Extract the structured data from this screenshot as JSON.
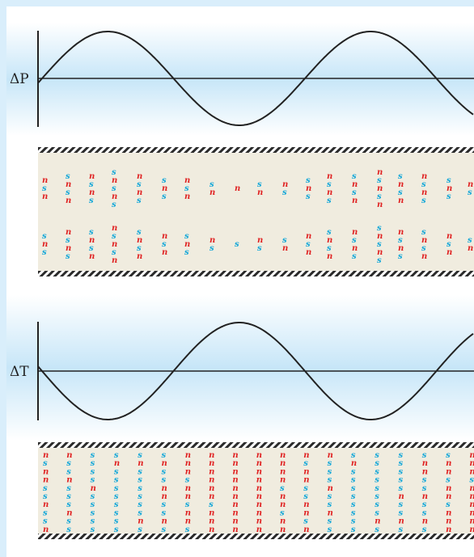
{
  "colors": {
    "background_outer": "#d9eefb",
    "panel_top": "#ffffff",
    "panel_band": "#c7e6f8",
    "tube_fill": "#f0ecdf",
    "wall_stripe": "#2b2b2b",
    "n_color": "#e02424",
    "s_color": "#1aa9d8",
    "curve": "#222222"
  },
  "plots": [
    {
      "id": "pressure",
      "label": "ΔP",
      "phase": "sine"
    },
    {
      "id": "temperature",
      "label": "ΔT",
      "phase": "negative-sine"
    }
  ],
  "tubes": [
    {
      "id": "pressure-tube",
      "pattern": "clustered"
    },
    {
      "id": "temperature-tube",
      "pattern": "uniform"
    }
  ],
  "glyphs": {
    "normal": "n",
    "super": "s"
  }
}
